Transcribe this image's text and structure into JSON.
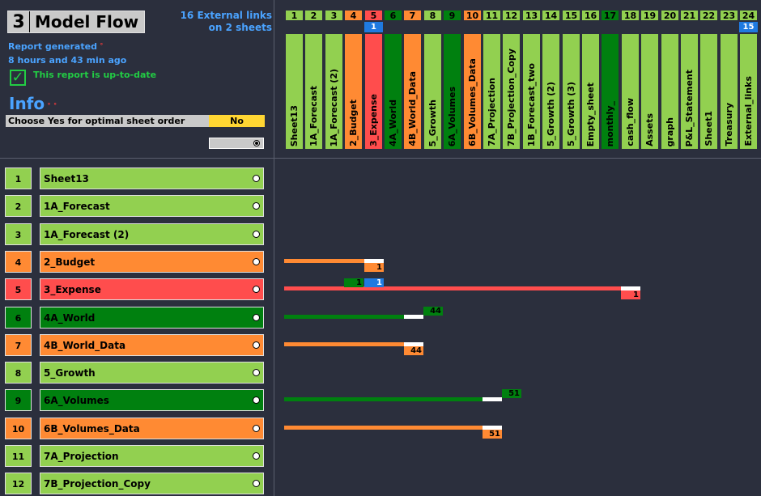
{
  "header": {
    "sheet_number": "3",
    "title": "Model Flow",
    "external_links_line1": "16 External links",
    "external_links_line2": "on 2 sheets",
    "report_generated": "Report generated",
    "report_age": "8 hours and 43 min ago",
    "uptodate": "This report is up-to-date",
    "info": "Info",
    "order_label": "Choose Yes for optimal sheet order",
    "order_value": "No"
  },
  "colors": {
    "light_green": "#92d050",
    "dark_green": "#00800f",
    "orange": "#ff8a33",
    "red": "#ff4d4d",
    "white": "#ffffff",
    "blue": "#1f7ae0"
  },
  "columns": [
    {
      "num": "1",
      "name": "Sheet13",
      "color": "#92d050"
    },
    {
      "num": "2",
      "name": "1A_Forecast",
      "color": "#92d050"
    },
    {
      "num": "3",
      "name": "1A_Forecast (2)",
      "color": "#92d050"
    },
    {
      "num": "4",
      "name": "2_Budget",
      "color": "#ff8a33"
    },
    {
      "num": "5",
      "name": "3_Expense",
      "color": "#ff4d4d",
      "badge": "1"
    },
    {
      "num": "6",
      "name": "4A_World",
      "color": "#00800f"
    },
    {
      "num": "7",
      "name": "4B_World_Data",
      "color": "#ff8a33"
    },
    {
      "num": "8",
      "name": "5_Growth",
      "color": "#92d050"
    },
    {
      "num": "9",
      "name": "6A_Volumes",
      "color": "#00800f"
    },
    {
      "num": "10",
      "name": "6B_Volumes_Data",
      "color": "#ff8a33"
    },
    {
      "num": "11",
      "name": "7A_Projection",
      "color": "#92d050"
    },
    {
      "num": "12",
      "name": "7B_Projection_Copy",
      "color": "#92d050"
    },
    {
      "num": "13",
      "name": "1B_Forecast_two",
      "color": "#92d050"
    },
    {
      "num": "14",
      "name": "5_Growth (2)",
      "color": "#92d050"
    },
    {
      "num": "15",
      "name": "5_Growth (3)",
      "color": "#92d050"
    },
    {
      "num": "16",
      "name": "Empty_sheet",
      "color": "#92d050"
    },
    {
      "num": "17",
      "name": "monthly_",
      "color": "#00800f"
    },
    {
      "num": "18",
      "name": "cash_flow",
      "color": "#92d050"
    },
    {
      "num": "19",
      "name": "Assets",
      "color": "#92d050"
    },
    {
      "num": "20",
      "name": "graph",
      "color": "#92d050"
    },
    {
      "num": "21",
      "name": "P&L_Statement",
      "color": "#92d050"
    },
    {
      "num": "22",
      "name": "Sheet1",
      "color": "#92d050"
    },
    {
      "num": "23",
      "name": "Treasury",
      "color": "#92d050"
    },
    {
      "num": "24",
      "name": "External_links",
      "color": "#92d050",
      "badge": "15"
    }
  ],
  "rows": [
    {
      "num": "1",
      "name": "Sheet13",
      "color": "#92d050"
    },
    {
      "num": "2",
      "name": "1A_Forecast",
      "color": "#92d050"
    },
    {
      "num": "3",
      "name": "1A_Forecast (2)",
      "color": "#92d050"
    },
    {
      "num": "4",
      "name": "2_Budget",
      "color": "#ff8a33"
    },
    {
      "num": "5",
      "name": "3_Expense",
      "color": "#ff4d4d"
    },
    {
      "num": "6",
      "name": "4A_World",
      "color": "#00800f"
    },
    {
      "num": "7",
      "name": "4B_World_Data",
      "color": "#ff8a33"
    },
    {
      "num": "8",
      "name": "5_Growth",
      "color": "#92d050"
    },
    {
      "num": "9",
      "name": "6A_Volumes",
      "color": "#00800f"
    },
    {
      "num": "10",
      "name": "6B_Volumes_Data",
      "color": "#ff8a33"
    },
    {
      "num": "11",
      "name": "7A_Projection",
      "color": "#92d050"
    },
    {
      "num": "12",
      "name": "7B_Projection_Copy",
      "color": "#92d050"
    }
  ],
  "flows": [
    {
      "row": 4,
      "from_col": 1,
      "to_col": 5,
      "color": "#ff8a33",
      "label": "1",
      "label_below": true
    },
    {
      "row": 5,
      "from_col": 1,
      "to_col": 18,
      "color": "#ff4d4d",
      "label": "1",
      "label_below": true
    },
    {
      "row": 6,
      "from_col": 1,
      "to_col": 7,
      "color": "#00800f",
      "label": "44",
      "label_below": false
    },
    {
      "row": 7,
      "from_col": 1,
      "to_col": 7,
      "color": "#ff8a33",
      "label": "44",
      "label_below": true
    },
    {
      "row": 9,
      "from_col": 1,
      "to_col": 11,
      "color": "#00800f",
      "label": "51",
      "label_below": false
    },
    {
      "row": 10,
      "from_col": 1,
      "to_col": 11,
      "color": "#ff8a33",
      "label": "51",
      "label_below": true
    }
  ],
  "extra_labels": [
    {
      "row": 5,
      "col": 4,
      "color": "#00800f",
      "text": "1",
      "text_color": "#000000"
    },
    {
      "row": 5,
      "col": 5,
      "color": "#1f7ae0",
      "text": "1",
      "text_color": "#ffffff"
    }
  ]
}
